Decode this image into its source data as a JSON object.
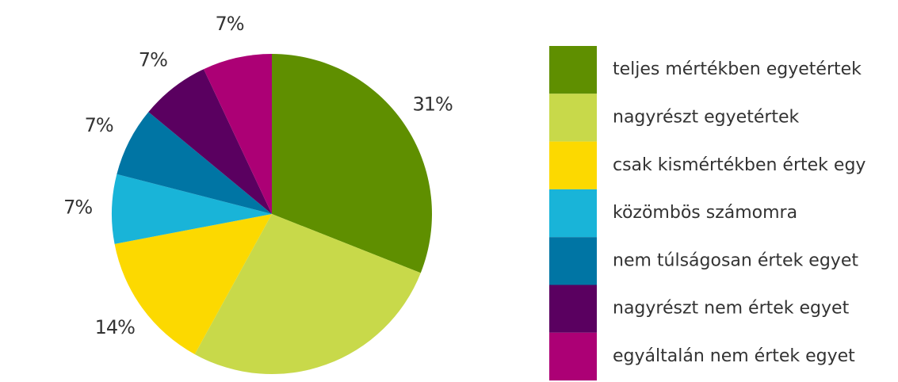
{
  "chart_data": {
    "type": "pie",
    "categories": [
      "teljes mértékben egyetértek",
      "nagyrészt egyetértek",
      "csak kismértékben értek egy",
      "közömbös számomra",
      "nem túlságosan értek egyet",
      "nagyrészt nem értek egyet",
      "egyáltalán nem értek egyet"
    ],
    "values": [
      31,
      27,
      14,
      7,
      7,
      7,
      7
    ],
    "value_labels": [
      "31%",
      null,
      "14%",
      "7%",
      "7%",
      "7%",
      "7%"
    ],
    "colors": [
      "#5f8f00",
      "#c8d94a",
      "#fcd900",
      "#19b4d8",
      "#0075a4",
      "#5a0060",
      "#ac0075"
    ],
    "legend": "right"
  }
}
